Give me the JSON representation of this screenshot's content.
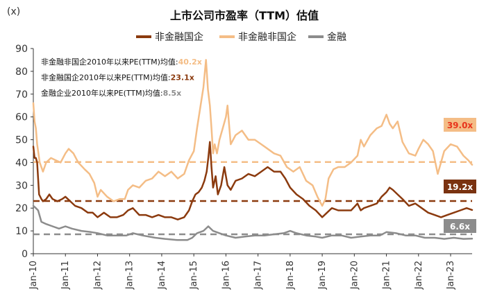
{
  "chart_data": {
    "type": "line",
    "title": "上市公司市盈率（TTM）估值",
    "ylabel": "(x)",
    "ylim": [
      0,
      90
    ],
    "yticks": [
      0,
      10,
      20,
      30,
      40,
      50,
      60,
      70,
      80,
      90
    ],
    "xlim": [
      2010.0,
      2023.67
    ],
    "xticks": [
      {
        "label": "Jan-10",
        "x": 2010
      },
      {
        "label": "Jan-11",
        "x": 2011
      },
      {
        "label": "Jan-12",
        "x": 2012
      },
      {
        "label": "Jan-13",
        "x": 2013
      },
      {
        "label": "Jan-14",
        "x": 2014
      },
      {
        "label": "Jan-15",
        "x": 2015
      },
      {
        "label": "Jan-16",
        "x": 2016
      },
      {
        "label": "Jan-17",
        "x": 2017
      },
      {
        "label": "Jan-18",
        "x": 2018
      },
      {
        "label": "Jan-19",
        "x": 2019
      },
      {
        "label": "Jan-20",
        "x": 2020
      },
      {
        "label": "Jan-21",
        "x": 2021
      },
      {
        "label": "Jan-22",
        "x": 2022
      },
      {
        "label": "Jan-23",
        "x": 2023
      }
    ],
    "grid": false,
    "legend_position": "top-center",
    "series": [
      {
        "name": "非金融国企",
        "color": "#8B3A0E",
        "x": [
          2010.0,
          2010.04,
          2010.08,
          2010.12,
          2010.18,
          2010.25,
          2010.3,
          2010.4,
          2010.5,
          2010.6,
          2010.75,
          2010.9,
          2011.0,
          2011.15,
          2011.3,
          2011.5,
          2011.7,
          2011.85,
          2012.0,
          2012.1,
          2012.2,
          2012.4,
          2012.6,
          2012.8,
          2012.95,
          2013.1,
          2013.3,
          2013.5,
          2013.7,
          2013.9,
          2014.1,
          2014.3,
          2014.5,
          2014.7,
          2014.85,
          2014.95,
          2015.05,
          2015.15,
          2015.25,
          2015.33,
          2015.4,
          2015.45,
          2015.5,
          2015.55,
          2015.6,
          2015.68,
          2015.75,
          2015.85,
          2015.95,
          2016.05,
          2016.15,
          2016.3,
          2016.5,
          2016.7,
          2016.9,
          2017.1,
          2017.3,
          2017.5,
          2017.7,
          2017.85,
          2018.0,
          2018.2,
          2018.4,
          2018.6,
          2018.8,
          2019.0,
          2019.15,
          2019.3,
          2019.5,
          2019.7,
          2019.9,
          2020.1,
          2020.2,
          2020.3,
          2020.5,
          2020.7,
          2020.85,
          2021.0,
          2021.1,
          2021.2,
          2021.35,
          2021.5,
          2021.7,
          2021.9,
          2022.1,
          2022.3,
          2022.5,
          2022.7,
          2022.9,
          2023.1,
          2023.3,
          2023.5,
          2023.67
        ],
        "values": [
          47,
          42,
          42,
          40,
          26,
          24,
          23,
          24,
          26,
          24,
          23,
          24,
          25,
          23,
          21,
          20,
          18,
          18,
          16,
          17,
          18,
          16,
          16,
          17,
          19,
          20,
          17,
          17,
          16,
          17,
          16,
          16,
          15,
          16,
          19,
          23,
          26,
          27,
          29,
          32,
          36,
          42,
          49,
          38,
          29,
          34,
          26,
          30,
          38,
          30,
          28,
          32,
          33,
          35,
          34,
          36,
          38,
          36,
          36,
          33,
          29,
          26,
          24,
          21,
          19,
          16,
          18,
          20,
          19,
          19,
          19,
          22,
          19,
          20,
          21,
          22,
          25,
          27,
          29,
          28,
          26,
          24,
          21,
          22,
          20,
          18,
          17,
          16,
          17,
          18,
          19,
          20,
          19.2
        ]
      },
      {
        "name": "非金融非国企",
        "color": "#F4BD86",
        "x": [
          2010.0,
          2010.04,
          2010.08,
          2010.12,
          2010.2,
          2010.3,
          2010.4,
          2010.55,
          2010.7,
          2010.85,
          2011.0,
          2011.1,
          2011.25,
          2011.4,
          2011.6,
          2011.75,
          2011.9,
          2012.0,
          2012.1,
          2012.3,
          2012.5,
          2012.7,
          2012.85,
          2012.95,
          2013.1,
          2013.3,
          2013.5,
          2013.7,
          2013.9,
          2014.1,
          2014.3,
          2014.5,
          2014.7,
          2014.85,
          2015.0,
          2015.1,
          2015.2,
          2015.3,
          2015.38,
          2015.44,
          2015.5,
          2015.55,
          2015.6,
          2015.65,
          2015.72,
          2015.8,
          2015.9,
          2016.0,
          2016.05,
          2016.15,
          2016.3,
          2016.5,
          2016.7,
          2016.9,
          2017.1,
          2017.3,
          2017.5,
          2017.7,
          2017.9,
          2018.1,
          2018.3,
          2018.5,
          2018.7,
          2018.85,
          2019.0,
          2019.1,
          2019.2,
          2019.35,
          2019.5,
          2019.7,
          2019.9,
          2020.1,
          2020.2,
          2020.3,
          2020.5,
          2020.7,
          2020.85,
          2021.0,
          2021.1,
          2021.2,
          2021.35,
          2021.5,
          2021.7,
          2021.9,
          2022.0,
          2022.15,
          2022.3,
          2022.45,
          2022.6,
          2022.8,
          2023.0,
          2023.2,
          2023.4,
          2023.55,
          2023.67
        ],
        "values": [
          66,
          58,
          55,
          48,
          40,
          36,
          40,
          42,
          41,
          40,
          44,
          46,
          44,
          40,
          37,
          35,
          31,
          25,
          28,
          25,
          23,
          24,
          24,
          28,
          30,
          29,
          32,
          33,
          36,
          34,
          36,
          33,
          35,
          41,
          45,
          55,
          64,
          73,
          85,
          72,
          65,
          55,
          44,
          48,
          44,
          50,
          55,
          60,
          65,
          48,
          52,
          54,
          50,
          50,
          48,
          46,
          44,
          43,
          38,
          36,
          38,
          32,
          30,
          25,
          21,
          24,
          33,
          37,
          38,
          38,
          40,
          43,
          50,
          47,
          52,
          55,
          56,
          61,
          57,
          55,
          58,
          49,
          44,
          43,
          46,
          50,
          48,
          45,
          35,
          45,
          48,
          47,
          43,
          41,
          39
        ]
      },
      {
        "name": "金融",
        "color": "#8C8C8C",
        "x": [
          2010.0,
          2010.08,
          2010.15,
          2010.25,
          2010.4,
          2010.6,
          2010.8,
          2011.0,
          2011.2,
          2011.5,
          2011.8,
          2012.0,
          2012.3,
          2012.6,
          2012.9,
          2013.1,
          2013.4,
          2013.8,
          2014.1,
          2014.5,
          2014.8,
          2014.95,
          2015.1,
          2015.3,
          2015.45,
          2015.6,
          2015.8,
          2016.0,
          2016.3,
          2016.6,
          2016.9,
          2017.2,
          2017.5,
          2017.8,
          2018.0,
          2018.2,
          2018.5,
          2018.8,
          2019.0,
          2019.3,
          2019.6,
          2019.9,
          2020.2,
          2020.5,
          2020.8,
          2021.0,
          2021.3,
          2021.6,
          2021.9,
          2022.2,
          2022.5,
          2022.8,
          2023.1,
          2023.4,
          2023.67
        ],
        "values": [
          21,
          20,
          19,
          14,
          13,
          12,
          11,
          12,
          11,
          10,
          9.5,
          9,
          8,
          8,
          8,
          9,
          8,
          7,
          6.5,
          6,
          6,
          7,
          9,
          10,
          12,
          10,
          9,
          8,
          7,
          7.5,
          8,
          8,
          8.5,
          9,
          10,
          9,
          8,
          7.5,
          7,
          8,
          8,
          7,
          7.5,
          8,
          8,
          9.5,
          9,
          8,
          8,
          7,
          7,
          6.5,
          7,
          6.5,
          6.6
        ]
      }
    ],
    "average_lines": [
      {
        "series": "非金融非国企",
        "value": 40.2,
        "color": "#F4BD86"
      },
      {
        "series": "非金融国企",
        "value": 23.1,
        "color": "#8B3A0E"
      },
      {
        "series": "金融",
        "value": 8.5,
        "color": "#8C8C8C"
      }
    ],
    "annotations": [
      {
        "text": "非金融非国企2010年以来PE(TTM)均值:",
        "value_text": "40.2x",
        "value_color": "#F4BD86"
      },
      {
        "text": "非金融国企2010年以来PE(TTM)均值:",
        "value_text": "23.1x",
        "value_color": "#8B3A0E"
      },
      {
        "text": "金融企业2010年以来PE(TTM)均值:",
        "value_text": "8.5x",
        "value_color": "#8C8C8C"
      }
    ],
    "end_labels": [
      {
        "text": "39.0x",
        "value": 39.0,
        "bg": "#F4BD86",
        "fg": "#E8341C"
      },
      {
        "text": "19.2x",
        "value": 19.2,
        "bg": "#7A3210",
        "fg": "#ffffff"
      },
      {
        "text": "6.6x",
        "value": 6.6,
        "bg": "#8C8C8C",
        "fg": "#ffffff"
      }
    ]
  }
}
